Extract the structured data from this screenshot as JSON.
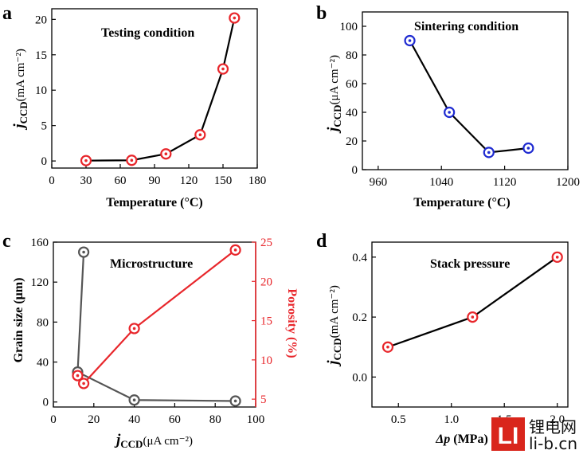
{
  "chart_data": [
    {
      "panel": "a",
      "type": "line",
      "title": "Testing condition",
      "xlabel": "Temperature (°C)",
      "ylabel_main": "j",
      "ylabel_sub": "CCD",
      "ylabel_unit": "(mA cm⁻²)",
      "xlim": [
        0,
        180
      ],
      "ylim": [
        -1,
        21.5
      ],
      "xticks": [
        0,
        30,
        60,
        90,
        120,
        150,
        180
      ],
      "yticks": [
        0,
        5,
        10,
        15,
        20
      ],
      "x": [
        30,
        70,
        100,
        130,
        150,
        160
      ],
      "y": [
        0.05,
        0.1,
        1.0,
        3.7,
        13.0,
        20.2
      ],
      "marker_color": "#e8262b"
    },
    {
      "panel": "b",
      "type": "line",
      "title": "Sintering condition",
      "xlabel": "Temperature (°C)",
      "ylabel_main": "j",
      "ylabel_sub": "CCD",
      "ylabel_unit": "(μA cm⁻²)",
      "xlim": [
        940,
        1200
      ],
      "ylim": [
        0,
        110
      ],
      "xticks": [
        960,
        1040,
        1120,
        1200
      ],
      "yticks": [
        0,
        20,
        40,
        60,
        80,
        100
      ],
      "x": [
        1000,
        1050,
        1100,
        1150
      ],
      "y": [
        90,
        40,
        12,
        15
      ],
      "marker_color": "#1f2bd1"
    },
    {
      "panel": "c",
      "type": "line",
      "title": "Microstructure",
      "xlabel_main": "j",
      "xlabel_sub": "CCD",
      "xlabel_unit": "(μA cm⁻²)",
      "ylabel_left": "Grain size (μm)",
      "ylabel_right": "Porosity (%)",
      "xlim": [
        0,
        100
      ],
      "ylim_left": [
        -5,
        160
      ],
      "ylim_right": [
        4,
        25
      ],
      "xticks": [
        0,
        20,
        40,
        60,
        80,
        100
      ],
      "yticks_left": [
        0,
        40,
        80,
        120,
        160
      ],
      "yticks_right": [
        5,
        10,
        15,
        20,
        25
      ],
      "series": [
        {
          "name": "Grain size",
          "x": [
            15,
            12,
            40,
            90
          ],
          "y": [
            150,
            30,
            2,
            1
          ],
          "color": "#555555"
        },
        {
          "name": "Porosity",
          "x": [
            12,
            15,
            40,
            90
          ],
          "y": [
            8,
            7,
            14,
            24
          ],
          "color": "#e8262b"
        }
      ]
    },
    {
      "panel": "d",
      "type": "line",
      "title": "Stack pressure",
      "xlabel": "Δp (MPa)",
      "ylabel_main": "j",
      "ylabel_sub": "CCD",
      "ylabel_unit": "(mA cm⁻²)",
      "xlim": [
        0.25,
        2.1
      ],
      "ylim": [
        -0.1,
        0.45
      ],
      "xticks": [
        0.5,
        1.0,
        1.5,
        2.0
      ],
      "xticklabels": [
        "0.5",
        "1.0",
        "1.5",
        "2.0"
      ],
      "yticks": [
        0.0,
        0.2,
        0.4
      ],
      "yticklabels": [
        "0.0",
        "0.2",
        "0.4"
      ],
      "x": [
        0.4,
        1.2,
        2.0
      ],
      "y": [
        0.1,
        0.2,
        0.4
      ],
      "marker_color": "#e8262b"
    }
  ],
  "watermark": {
    "logo_letters": "LI",
    "line1": "锂电网",
    "line2": "li-b.cn",
    "logo_color": "#d9261c"
  }
}
